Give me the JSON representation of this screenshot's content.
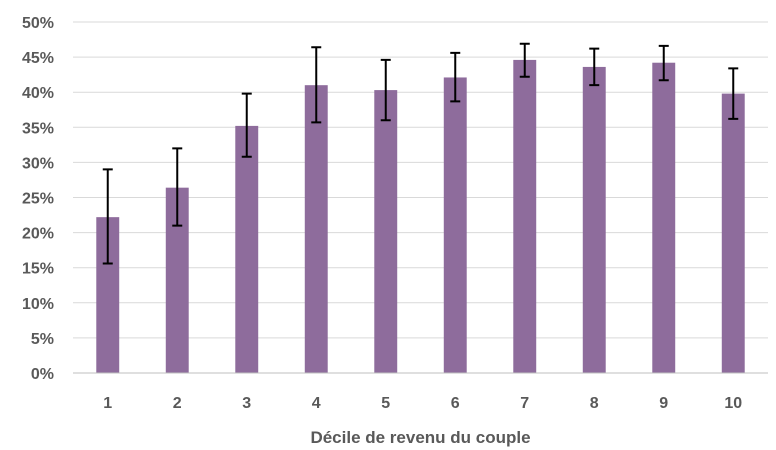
{
  "chart_data": {
    "type": "bar",
    "title": "",
    "xlabel": "Décile de revenu du couple",
    "ylabel": "",
    "categories": [
      "1",
      "2",
      "3",
      "4",
      "5",
      "6",
      "7",
      "8",
      "9",
      "10"
    ],
    "values": [
      22.2,
      26.4,
      35.2,
      41.0,
      40.3,
      42.1,
      44.6,
      43.6,
      44.2,
      39.8
    ],
    "error_low": [
      15.6,
      21.0,
      30.8,
      35.7,
      36.0,
      38.7,
      42.2,
      41.0,
      41.7,
      36.2
    ],
    "error_high": [
      29.0,
      32.0,
      39.8,
      46.4,
      44.6,
      45.6,
      46.9,
      46.2,
      46.6,
      43.4
    ],
    "ylim": [
      0,
      50
    ],
    "yticks": [
      "0%",
      "5%",
      "10%",
      "15%",
      "20%",
      "25%",
      "30%",
      "35%",
      "40%",
      "45%",
      "50%"
    ],
    "ytick_values": [
      0,
      5,
      10,
      15,
      20,
      25,
      30,
      35,
      40,
      45,
      50
    ],
    "grid": true,
    "legend": "none",
    "bar_color": "#8e6c9c"
  }
}
